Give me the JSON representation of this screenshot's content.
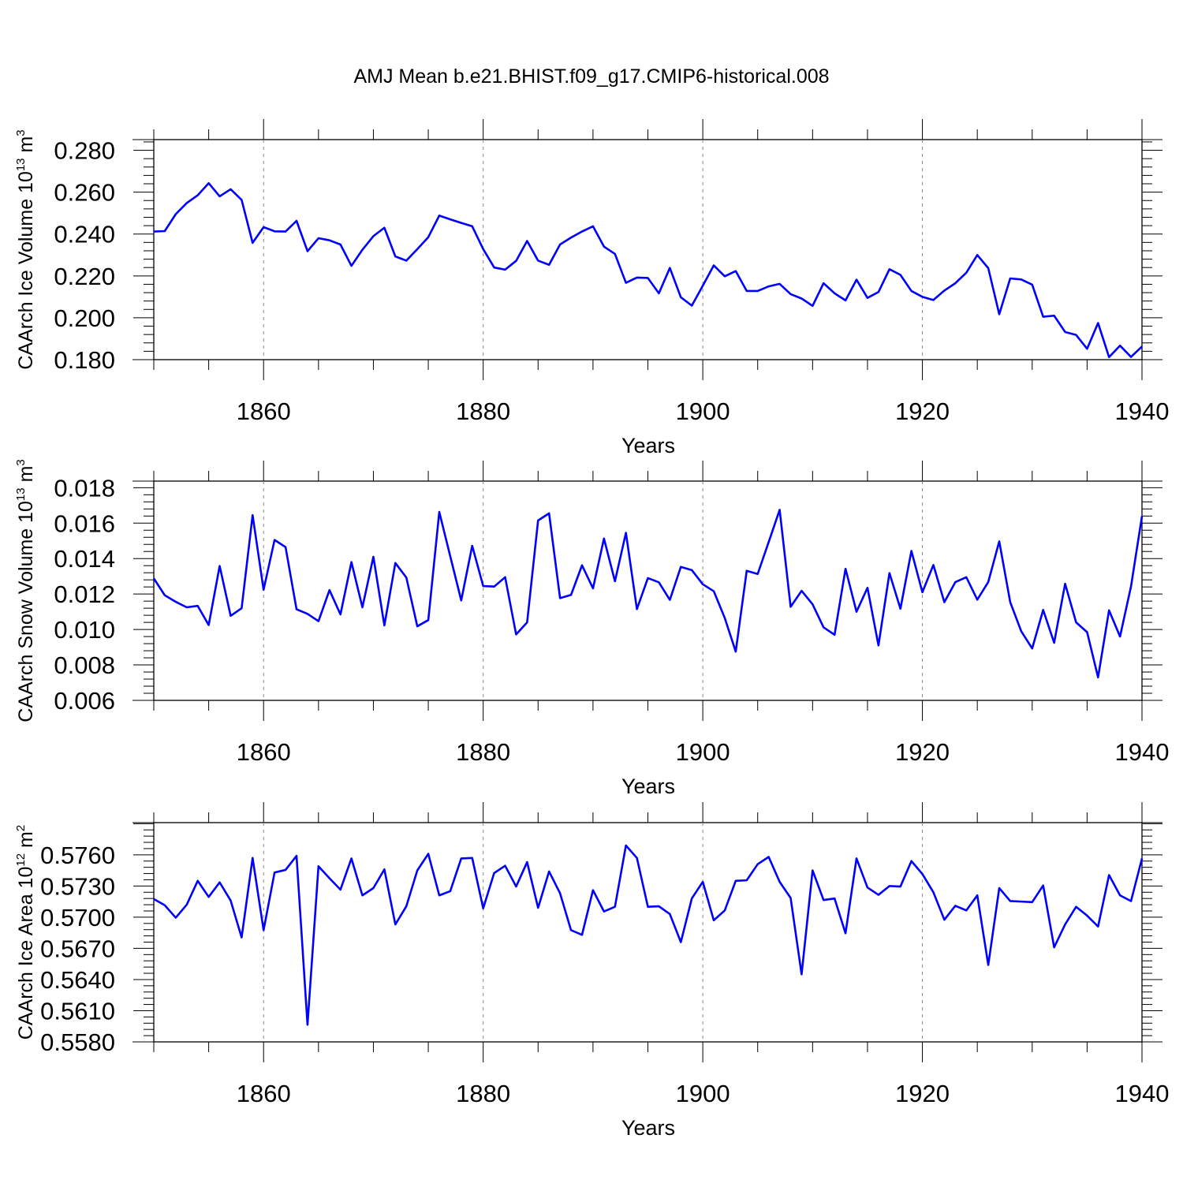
{
  "title": "AMJ Mean b.e21.BHIST.f09_g17.CMIP6-historical.008",
  "colors": {
    "line": "#0000ff",
    "axis": "#000000",
    "grid": "#888888"
  },
  "chart_data": [
    {
      "type": "line",
      "ylabel": "CAArch Ice Volume 10",
      "ylabel_exp": "13",
      "ylabel_unit": " m",
      "ylabel_unit_exp": "3",
      "xlabel": "Years",
      "xlim": [
        1850,
        1940
      ],
      "ylim": [
        0.18,
        0.2851
      ],
      "yticks": [
        0.18,
        0.2,
        0.22,
        0.24,
        0.26,
        0.28
      ],
      "yticklabels": [
        "0.180",
        "0.200",
        "0.220",
        "0.240",
        "0.260",
        "0.280"
      ],
      "xticks": [
        1860,
        1880,
        1900,
        1920,
        1940
      ],
      "xticklabels": [
        "1860",
        "1880",
        "1900",
        "1920",
        "1940"
      ],
      "grid": "vertical dashed at major x ticks",
      "series": [
        {
          "x_start": 1850,
          "values": [
            0.2412,
            0.2414,
            0.2495,
            0.2548,
            0.2585,
            0.2643,
            0.258,
            0.2614,
            0.2563,
            0.2358,
            0.2433,
            0.2413,
            0.2412,
            0.2463,
            0.2318,
            0.238,
            0.237,
            0.235,
            0.2248,
            0.2325,
            0.239,
            0.243,
            0.2293,
            0.2273,
            0.2328,
            0.2385,
            0.2488,
            0.247,
            0.2453,
            0.2437,
            0.2328,
            0.224,
            0.223,
            0.2272,
            0.2367,
            0.2273,
            0.2253,
            0.235,
            0.2383,
            0.2412,
            0.2437,
            0.234,
            0.2305,
            0.2167,
            0.2192,
            0.219,
            0.2117,
            0.2238,
            0.2098,
            0.2058,
            0.2153,
            0.225,
            0.2198,
            0.2223,
            0.2128,
            0.2128,
            0.215,
            0.2162,
            0.2113,
            0.2092,
            0.2057,
            0.2165,
            0.2117,
            0.2083,
            0.2182,
            0.2095,
            0.2123,
            0.2232,
            0.2205,
            0.2128,
            0.21,
            0.2085,
            0.213,
            0.2165,
            0.2215,
            0.23,
            0.2237,
            0.2017,
            0.2188,
            0.2183,
            0.2158,
            0.2005,
            0.201,
            0.1932,
            0.1918,
            0.1852,
            0.1975,
            0.1812,
            0.1867,
            0.1813,
            0.1863
          ]
        }
      ]
    },
    {
      "type": "line",
      "ylabel": "CAArch Snow Volume 10",
      "ylabel_exp": "13",
      "ylabel_unit": " m",
      "ylabel_unit_exp": "3",
      "xlabel": "Years",
      "xlim": [
        1850,
        1940
      ],
      "ylim": [
        0.006,
        0.01837
      ],
      "yticks": [
        0.006,
        0.008,
        0.01,
        0.012,
        0.014,
        0.016,
        0.018
      ],
      "yticklabels": [
        "0.006",
        "0.008",
        "0.010",
        "0.012",
        "0.014",
        "0.016",
        "0.018"
      ],
      "xticks": [
        1860,
        1880,
        1900,
        1920,
        1940
      ],
      "xticklabels": [
        "1860",
        "1880",
        "1900",
        "1920",
        "1940"
      ],
      "grid": "vertical dashed at major x ticks",
      "series": [
        {
          "x_start": 1850,
          "values": [
            0.01288,
            0.01193,
            0.01156,
            0.01125,
            0.01133,
            0.01025,
            0.01358,
            0.01077,
            0.0112,
            0.01645,
            0.01224,
            0.01505,
            0.01465,
            0.01114,
            0.01088,
            0.01047,
            0.01222,
            0.01085,
            0.0138,
            0.01125,
            0.0141,
            0.01023,
            0.01375,
            0.01293,
            0.01018,
            0.01053,
            0.01663,
            0.01413,
            0.01164,
            0.01472,
            0.01245,
            0.01242,
            0.01295,
            0.00972,
            0.0104,
            0.01615,
            0.01655,
            0.01177,
            0.01195,
            0.01362,
            0.01232,
            0.01513,
            0.01272,
            0.01545,
            0.01115,
            0.0129,
            0.01266,
            0.01167,
            0.01353,
            0.01335,
            0.01255,
            0.01216,
            0.01065,
            0.00875,
            0.01331,
            0.01313,
            0.01493,
            0.01675,
            0.01128,
            0.01218,
            0.01142,
            0.01012,
            0.0097,
            0.01342,
            0.011,
            0.01235,
            0.0091,
            0.01318,
            0.01117,
            0.01443,
            0.0121,
            0.01364,
            0.01154,
            0.01267,
            0.01295,
            0.01168,
            0.01268,
            0.01497,
            0.01154,
            0.0099,
            0.00893,
            0.0111,
            0.00925,
            0.01258,
            0.0104,
            0.00985,
            0.0073,
            0.01108,
            0.0096,
            0.01243,
            0.0164
          ]
        }
      ]
    },
    {
      "type": "line",
      "ylabel": "CAArch Ice Area 10",
      "ylabel_exp": "12",
      "ylabel_unit": " m",
      "ylabel_unit_exp": "2",
      "xlabel": "Years",
      "xlim": [
        1850,
        1940
      ],
      "ylim": [
        0.558,
        0.5791
      ],
      "yticks": [
        0.558,
        0.561,
        0.564,
        0.567,
        0.57,
        0.573,
        0.576
      ],
      "yticklabels": [
        "0.5580",
        "0.5610",
        "0.5640",
        "0.5670",
        "0.5700",
        "0.5730",
        "0.5760"
      ],
      "xticks": [
        1860,
        1880,
        1900,
        1920,
        1940
      ],
      "xticklabels": [
        "1860",
        "1880",
        "1900",
        "1920",
        "1940"
      ],
      "grid": "vertical dashed at major x ticks",
      "series": [
        {
          "x_start": 1850,
          "values": [
            0.57175,
            0.57115,
            0.56995,
            0.5712,
            0.5735,
            0.57195,
            0.57335,
            0.5716,
            0.56805,
            0.5757,
            0.56875,
            0.5743,
            0.57455,
            0.5759,
            0.55965,
            0.5749,
            0.57375,
            0.57265,
            0.57565,
            0.5721,
            0.5728,
            0.5746,
            0.5693,
            0.57105,
            0.5745,
            0.5761,
            0.5721,
            0.5725,
            0.57565,
            0.5757,
            0.57085,
            0.57425,
            0.57495,
            0.57295,
            0.5753,
            0.5709,
            0.5744,
            0.5723,
            0.56875,
            0.5683,
            0.5726,
            0.57055,
            0.571,
            0.5769,
            0.5757,
            0.571,
            0.57105,
            0.5703,
            0.5676,
            0.5718,
            0.5734,
            0.5697,
            0.57065,
            0.5735,
            0.57355,
            0.5751,
            0.5758,
            0.5734,
            0.57185,
            0.5645,
            0.5745,
            0.57165,
            0.5718,
            0.56845,
            0.57565,
            0.57285,
            0.57215,
            0.573,
            0.57295,
            0.5754,
            0.57415,
            0.5724,
            0.56975,
            0.5711,
            0.57065,
            0.5721,
            0.5654,
            0.5728,
            0.57155,
            0.5715,
            0.57145,
            0.57305,
            0.5671,
            0.5693,
            0.571,
            0.57015,
            0.5691,
            0.57405,
            0.5721,
            0.57155,
            0.57565
          ]
        }
      ]
    }
  ]
}
